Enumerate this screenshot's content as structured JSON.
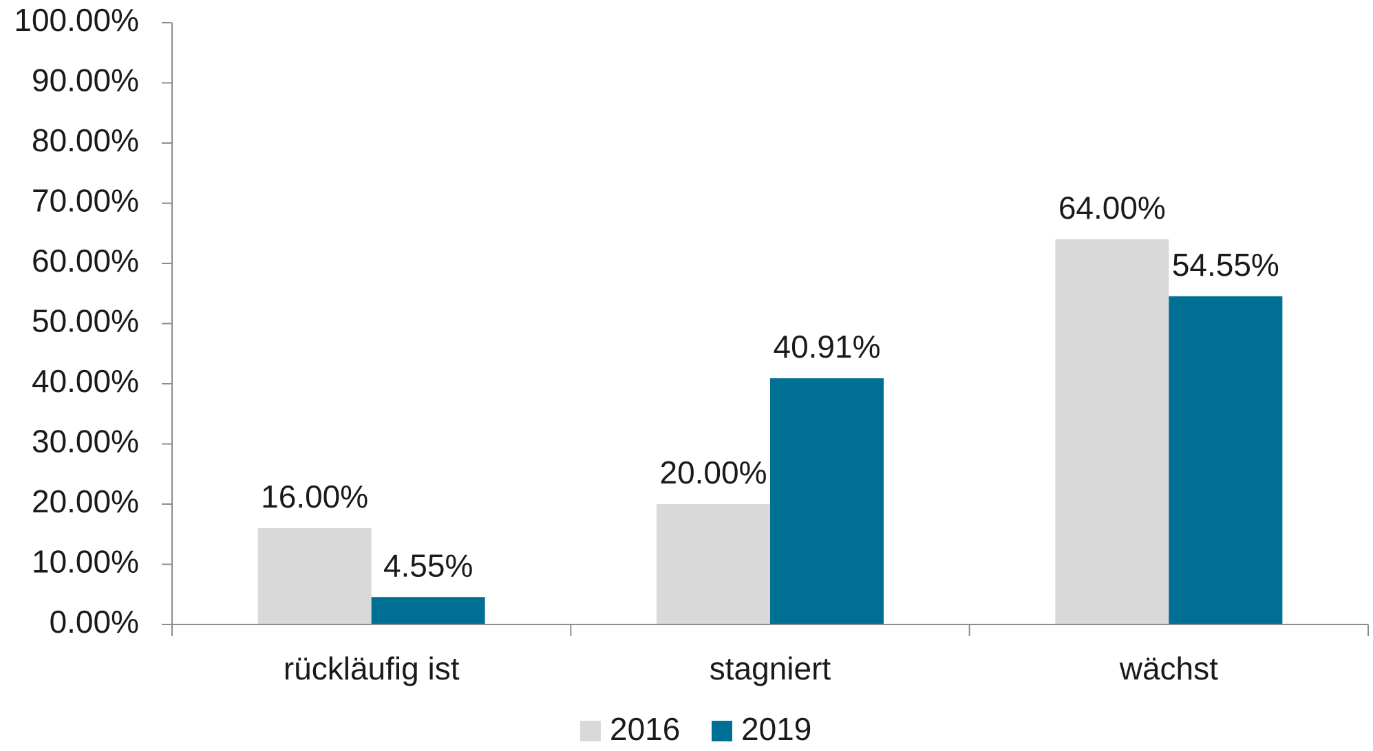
{
  "chart_data": {
    "type": "bar",
    "categories": [
      "rückläufig ist",
      "stagniert",
      "wächst"
    ],
    "series": [
      {
        "name": "2016",
        "color": "#d9d9d9",
        "values": [
          16.0,
          20.0,
          64.0
        ],
        "value_labels": [
          "16.00%",
          "20.00%",
          "64.00%"
        ]
      },
      {
        "name": "2019",
        "color": "#006f94",
        "values": [
          4.55,
          40.91,
          54.55
        ],
        "value_labels": [
          "4.55%",
          "40.91%",
          "54.55%"
        ]
      }
    ],
    "ylim": [
      0,
      100
    ],
    "yticks": [
      {
        "value": 0,
        "label": "0.00%"
      },
      {
        "value": 10,
        "label": "10.00%"
      },
      {
        "value": 20,
        "label": "20.00%"
      },
      {
        "value": 30,
        "label": "30.00%"
      },
      {
        "value": 40,
        "label": "40.00%"
      },
      {
        "value": 50,
        "label": "50.00%"
      },
      {
        "value": 60,
        "label": "60.00%"
      },
      {
        "value": 70,
        "label": "70.00%"
      },
      {
        "value": 80,
        "label": "80.00%"
      },
      {
        "value": 90,
        "label": "90.00%"
      },
      {
        "value": 100,
        "label": "100.00%"
      }
    ],
    "grid": false,
    "legend": "bottom"
  }
}
